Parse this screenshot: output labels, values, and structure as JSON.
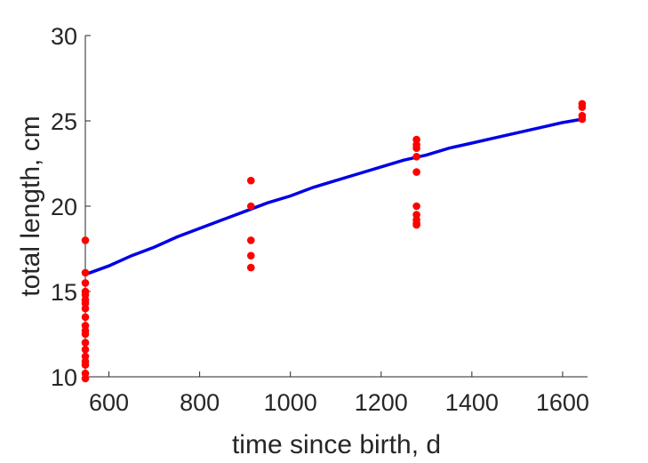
{
  "chart_data": {
    "type": "scatter",
    "title": "",
    "xlabel": "time since birth, d",
    "ylabel": "total length, cm",
    "xlim": [
      548,
      1655
    ],
    "ylim": [
      10,
      30
    ],
    "xticks": [
      600,
      800,
      1000,
      1200,
      1400,
      1600
    ],
    "yticks": [
      10,
      15,
      20,
      25,
      30
    ],
    "grid": false,
    "legend": "none",
    "colors": {
      "points": "#ff0000",
      "fit": "#0000e6",
      "axes": "#262626"
    },
    "series": [
      {
        "type": "scatter",
        "x": [
          548,
          548,
          548,
          548,
          548,
          548,
          548,
          548,
          548,
          548,
          548,
          548,
          548,
          548,
          548,
          548,
          548,
          548,
          548,
          913,
          913,
          913,
          913,
          913,
          1278,
          1278,
          1278,
          1278,
          1278,
          1278,
          1278,
          1278,
          1278,
          1278,
          1643,
          1643,
          1643,
          1643
        ],
        "y": [
          18.0,
          16.1,
          15.5,
          15.0,
          14.8,
          14.5,
          14.3,
          14.0,
          13.5,
          13.0,
          12.7,
          12.5,
          12.0,
          11.6,
          11.2,
          10.9,
          10.7,
          10.2,
          9.9,
          21.5,
          20.0,
          18.0,
          17.1,
          16.4,
          23.9,
          23.6,
          23.4,
          22.9,
          22.0,
          20.0,
          19.5,
          19.2,
          19.0,
          18.9,
          26.0,
          25.8,
          25.3,
          25.1
        ]
      },
      {
        "type": "line",
        "curve": "von Bertalanffy",
        "x": [
          548,
          600,
          650,
          700,
          750,
          800,
          850,
          900,
          950,
          1000,
          1050,
          1100,
          1150,
          1200,
          1250,
          1300,
          1350,
          1400,
          1450,
          1500,
          1550,
          1600,
          1643
        ],
        "y": [
          16.0,
          16.5,
          17.1,
          17.6,
          18.2,
          18.7,
          19.2,
          19.7,
          20.2,
          20.6,
          21.1,
          21.5,
          21.9,
          22.3,
          22.7,
          23.0,
          23.4,
          23.7,
          24.0,
          24.3,
          24.6,
          24.9,
          25.1
        ]
      }
    ]
  }
}
